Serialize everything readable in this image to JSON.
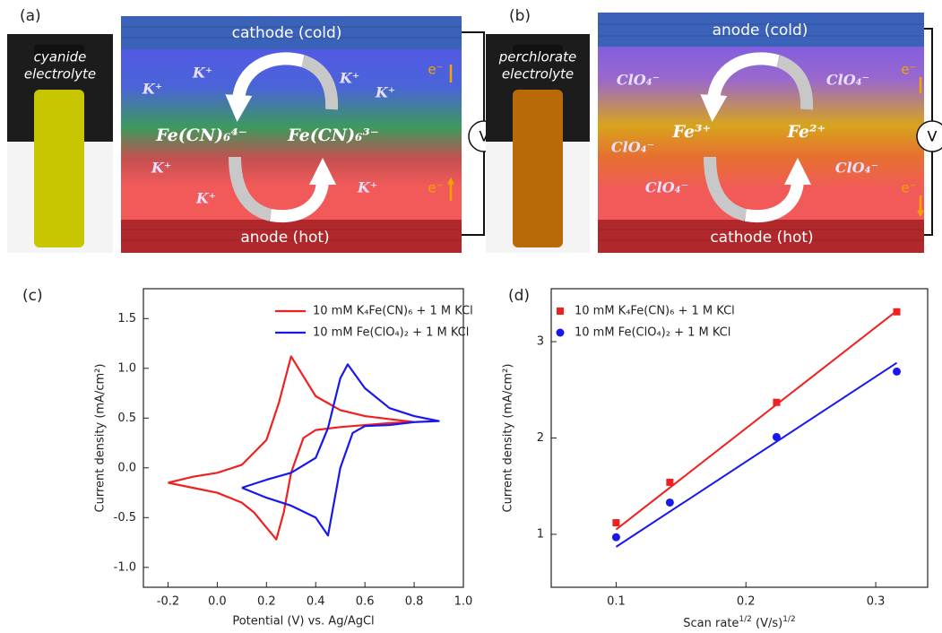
{
  "panels": [
    {
      "label": "(a)",
      "vial_label": [
        "cyanide",
        "electrolyte"
      ],
      "top_electrode": "cathode (cold)",
      "bottom_electrode": "anode (hot)",
      "species": [
        "Fe(CN)₆⁴⁻",
        "Fe(CN)₆³⁻"
      ],
      "ions": [
        "K⁺",
        "K⁺",
        "K⁺",
        "K⁺",
        "K⁺",
        "K⁺",
        "K⁺"
      ],
      "electrons": [
        "e⁻",
        "e⁻"
      ],
      "meter": "V"
    },
    {
      "label": "(b)",
      "vial_label": [
        "perchlorate",
        "electrolyte"
      ],
      "top_electrode": "anode (cold)",
      "bottom_electrode": "cathode (hot)",
      "species": [
        "Fe³⁺",
        "Fe²⁺"
      ],
      "ions": [
        "ClO₄⁻",
        "ClO₄⁻",
        "ClO₄⁻",
        "ClO₄⁻",
        "ClO₄⁻"
      ],
      "electrons": [
        "e⁻",
        "e⁻"
      ],
      "meter": "V"
    }
  ],
  "chart_data": [
    {
      "type": "line",
      "panel_label": "(c)",
      "x_label": "Potential (V) vs. Ag/AgCl",
      "y_label": "Current density (mA/cm²)",
      "xlim": [
        -0.3,
        1.0
      ],
      "ylim": [
        -1.2,
        1.8
      ],
      "xticks": [
        -0.2,
        {
          "value": 0,
          "label": "0.0"
        },
        0.2,
        0.4,
        0.6,
        0.8,
        {
          "value": 1,
          "label": "1.0"
        }
      ],
      "yticks": [
        {
          "value": -1,
          "label": "-1.0"
        },
        -0.5,
        {
          "value": 0,
          "label": "0.0"
        },
        0.5,
        {
          "value": 1,
          "label": "1.0"
        },
        1.5
      ],
      "legend_loc": "upper right",
      "series": [
        {
          "name": "10 mM K₄Fe(CN)₆ + 1 M KCl",
          "color": "#ee2020",
          "x": [
            -0.2,
            -0.1,
            0.0,
            0.1,
            0.2,
            0.25,
            0.3,
            0.35,
            0.4,
            0.5,
            0.6,
            0.7,
            0.8,
            0.7,
            0.6,
            0.5,
            0.4,
            0.35,
            0.3,
            0.27,
            0.24,
            0.2,
            0.15,
            0.1,
            0.0,
            -0.1,
            -0.2
          ],
          "values": [
            -0.15,
            -0.09,
            -0.05,
            0.03,
            0.28,
            0.65,
            1.12,
            0.92,
            0.72,
            0.58,
            0.52,
            0.49,
            0.46,
            0.45,
            0.43,
            0.41,
            0.38,
            0.3,
            -0.05,
            -0.45,
            -0.72,
            -0.6,
            -0.45,
            -0.35,
            -0.25,
            -0.2,
            -0.15
          ]
        },
        {
          "name": "10 mM Fe(ClO₄)₂ + 1 M KCl",
          "color": "#1818ee",
          "x": [
            0.1,
            0.2,
            0.3,
            0.4,
            0.45,
            0.5,
            0.53,
            0.6,
            0.7,
            0.8,
            0.9,
            0.8,
            0.7,
            0.6,
            0.55,
            0.5,
            0.45,
            0.4,
            0.3,
            0.2,
            0.1
          ],
          "values": [
            -0.2,
            -0.12,
            -0.05,
            0.1,
            0.4,
            0.9,
            1.04,
            0.8,
            0.6,
            0.52,
            0.47,
            0.46,
            0.43,
            0.42,
            0.35,
            0.0,
            -0.68,
            -0.5,
            -0.38,
            -0.3,
            -0.2
          ]
        }
      ]
    },
    {
      "type": "scatter",
      "panel_label": "(d)",
      "x_label_parts": [
        "Scan rate",
        "1/2",
        " (V/s)",
        "1/2"
      ],
      "y_label": "Current density (mA/cm²)",
      "xlim": [
        0.05,
        0.34
      ],
      "ylim": [
        0.45,
        3.55
      ],
      "xticks": [
        0.1,
        0.2,
        0.3
      ],
      "yticks": [
        1,
        2,
        3
      ],
      "legend_loc": "upper left",
      "series": [
        {
          "name": "10 mM K₄Fe(CN)₆ + 1 M KCl",
          "color": "#ee2020",
          "marker": "square",
          "x": [
            0.1,
            0.1414,
            0.2236,
            0.3162
          ],
          "values": [
            1.12,
            1.54,
            2.37,
            3.31
          ],
          "fit_x": [
            0.1,
            0.3162
          ],
          "fit_values": [
            1.05,
            3.32
          ]
        },
        {
          "name": "10 mM Fe(ClO₄)₂ + 1 M KCl",
          "color": "#1818ee",
          "marker": "circle",
          "x": [
            0.1,
            0.1414,
            0.2236,
            0.3162
          ],
          "values": [
            0.97,
            1.33,
            2.01,
            2.69
          ],
          "fit_x": [
            0.1,
            0.3162
          ],
          "fit_values": [
            0.87,
            2.78
          ]
        }
      ]
    }
  ]
}
